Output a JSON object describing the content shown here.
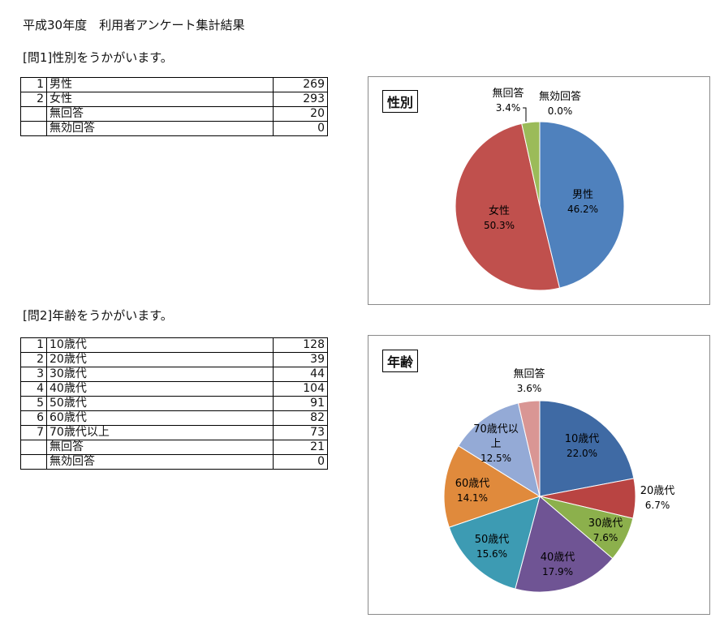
{
  "page": {
    "title": "平成30年度　利用者アンケート集計結果"
  },
  "q1": {
    "question": "[問1]性別をうかがいます。",
    "rows": [
      {
        "no": "1",
        "label": "男性",
        "value": "269"
      },
      {
        "no": "2",
        "label": "女性",
        "value": "293"
      },
      {
        "no": "",
        "label": "無回答",
        "value": "20"
      },
      {
        "no": "",
        "label": "無効回答",
        "value": "0"
      }
    ]
  },
  "q2": {
    "question": "[問2]年齢をうかがいます。",
    "rows": [
      {
        "no": "1",
        "label": "10歳代",
        "value": "128"
      },
      {
        "no": "2",
        "label": "20歳代",
        "value": "39"
      },
      {
        "no": "3",
        "label": "30歳代",
        "value": "44"
      },
      {
        "no": "4",
        "label": "40歳代",
        "value": "104"
      },
      {
        "no": "5",
        "label": "50歳代",
        "value": "91"
      },
      {
        "no": "6",
        "label": "60歳代",
        "value": "82"
      },
      {
        "no": "7",
        "label": "70歳代以上",
        "value": "73"
      },
      {
        "no": "",
        "label": "無回答",
        "value": "21"
      },
      {
        "no": "",
        "label": "無効回答",
        "value": "0"
      }
    ]
  },
  "chart_data": [
    {
      "type": "pie",
      "title": "性別",
      "slices": [
        {
          "label": "男性",
          "value": 269,
          "pct_label": "46.2%",
          "color": "#4f81bd"
        },
        {
          "label": "女性",
          "value": 293,
          "pct_label": "50.3%",
          "color": "#c0504d"
        },
        {
          "label": "無回答",
          "value": 20,
          "pct_label": "3.4%",
          "color": "#9bbb59"
        },
        {
          "label": "無効回答",
          "value": 0,
          "pct_label": "0.0%",
          "color": "#8064a2"
        }
      ]
    },
    {
      "type": "pie",
      "title": "年齢",
      "slices": [
        {
          "label": "10歳代",
          "value": 128,
          "pct_label": "22.0%",
          "color": "#3f6aa4"
        },
        {
          "label": "20歳代",
          "value": 39,
          "pct_label": "6.7%",
          "color": "#b94442"
        },
        {
          "label": "30歳代",
          "value": 44,
          "pct_label": "7.6%",
          "color": "#8cb04c"
        },
        {
          "label": "40歳代",
          "value": 104,
          "pct_label": "17.9%",
          "color": "#6f5494"
        },
        {
          "label": "50歳代",
          "value": 91,
          "pct_label": "15.6%",
          "color": "#3d9bb3"
        },
        {
          "label": "60歳代",
          "value": 82,
          "pct_label": "14.1%",
          "color": "#e08a3c"
        },
        {
          "label": "70歳代以上",
          "value": 73,
          "pct_label": "12.5%",
          "color": "#94aad6"
        },
        {
          "label": "無回答",
          "value": 21,
          "pct_label": "3.6%",
          "color": "#d99694"
        }
      ]
    }
  ]
}
